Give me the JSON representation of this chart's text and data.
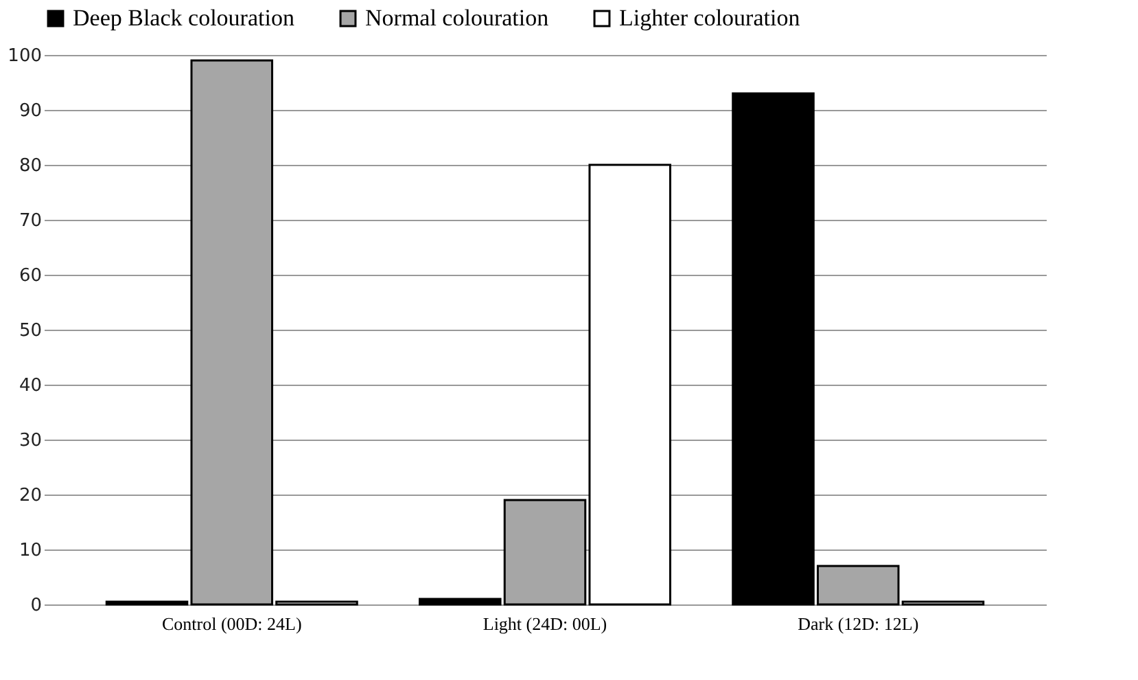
{
  "chart_data": {
    "type": "bar",
    "categories": [
      "Control (00D: 24L)",
      "Light (24D: 00L)",
      "Dark (12D: 12L)"
    ],
    "series": [
      {
        "name": "Deep Black colouration",
        "color": "#000000",
        "values": [
          0.5,
          1,
          93
        ]
      },
      {
        "name": "Normal colouration",
        "color": "#a6a6a6",
        "values": [
          99,
          19,
          7
        ]
      },
      {
        "name": "Lighter colouration",
        "color": "#ffffff",
        "values": [
          0.5,
          80,
          0.5
        ]
      }
    ],
    "ylim": [
      0,
      100
    ],
    "yticks": [
      0,
      10,
      20,
      30,
      40,
      50,
      60,
      70,
      80,
      90,
      100
    ],
    "grid": "y",
    "legend": "top"
  }
}
